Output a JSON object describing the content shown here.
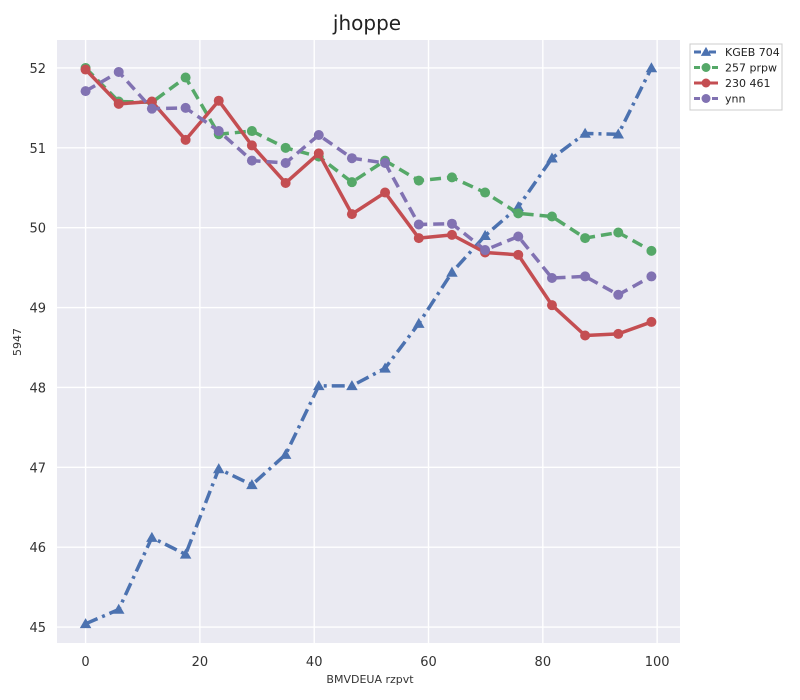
{
  "chart_data": {
    "type": "line",
    "title": "jhoppe",
    "xlabel": "BMVDEUA rzpvt",
    "ylabel": "5947",
    "xlim": [
      -5,
      104
    ],
    "ylim": [
      44.8,
      52.35
    ],
    "x_ticks": [
      0,
      20,
      40,
      60,
      80,
      100
    ],
    "x_tick_labels": [
      "0",
      "20",
      "40",
      "60",
      "80",
      "100"
    ],
    "y_ticks": [
      45,
      46,
      47,
      48,
      49,
      50,
      51,
      52
    ],
    "y_tick_labels": [
      "45",
      "46",
      "47",
      "48",
      "49",
      "50",
      "51",
      "52"
    ],
    "grid": true,
    "legend_position": "top-right",
    "x": [
      0,
      5.8,
      11.6,
      17.5,
      23.3,
      29.1,
      35.0,
      40.8,
      46.6,
      52.4,
      58.3,
      64.1,
      69.9,
      75.7,
      81.6,
      87.4,
      93.2,
      99.0
    ],
    "series": [
      {
        "name": "KGEB 704",
        "color": "#4c72b0",
        "line_style": "dashdot",
        "marker": "triangle",
        "values": [
          45.04,
          45.22,
          46.12,
          45.91,
          46.98,
          46.78,
          47.16,
          48.02,
          48.02,
          48.24,
          48.8,
          49.44,
          49.9,
          50.26,
          50.87,
          51.18,
          51.17,
          52.0
        ]
      },
      {
        "name": "257 prpw",
        "color": "#55a868",
        "line_style": "dashed",
        "marker": "circle",
        "values": [
          52.0,
          51.58,
          51.57,
          51.88,
          51.17,
          51.21,
          51.0,
          50.89,
          50.57,
          50.84,
          50.59,
          50.63,
          50.44,
          50.18,
          50.14,
          49.87,
          49.94,
          49.71
        ]
      },
      {
        "name": "230 461",
        "color": "#c44e52",
        "line_style": "solid",
        "marker": "circle",
        "values": [
          51.98,
          51.55,
          51.58,
          51.1,
          51.59,
          51.03,
          50.56,
          50.93,
          50.17,
          50.44,
          49.87,
          49.91,
          49.69,
          49.66,
          49.03,
          48.65,
          48.67,
          48.82
        ]
      },
      {
        "name": "ynn",
        "color": "#8172b2",
        "line_style": "dashed",
        "marker": "circle",
        "values": [
          51.71,
          51.95,
          51.49,
          51.5,
          51.21,
          50.84,
          50.81,
          51.16,
          50.87,
          50.81,
          50.04,
          50.05,
          49.72,
          49.89,
          49.37,
          49.39,
          49.16,
          49.39
        ]
      }
    ]
  }
}
